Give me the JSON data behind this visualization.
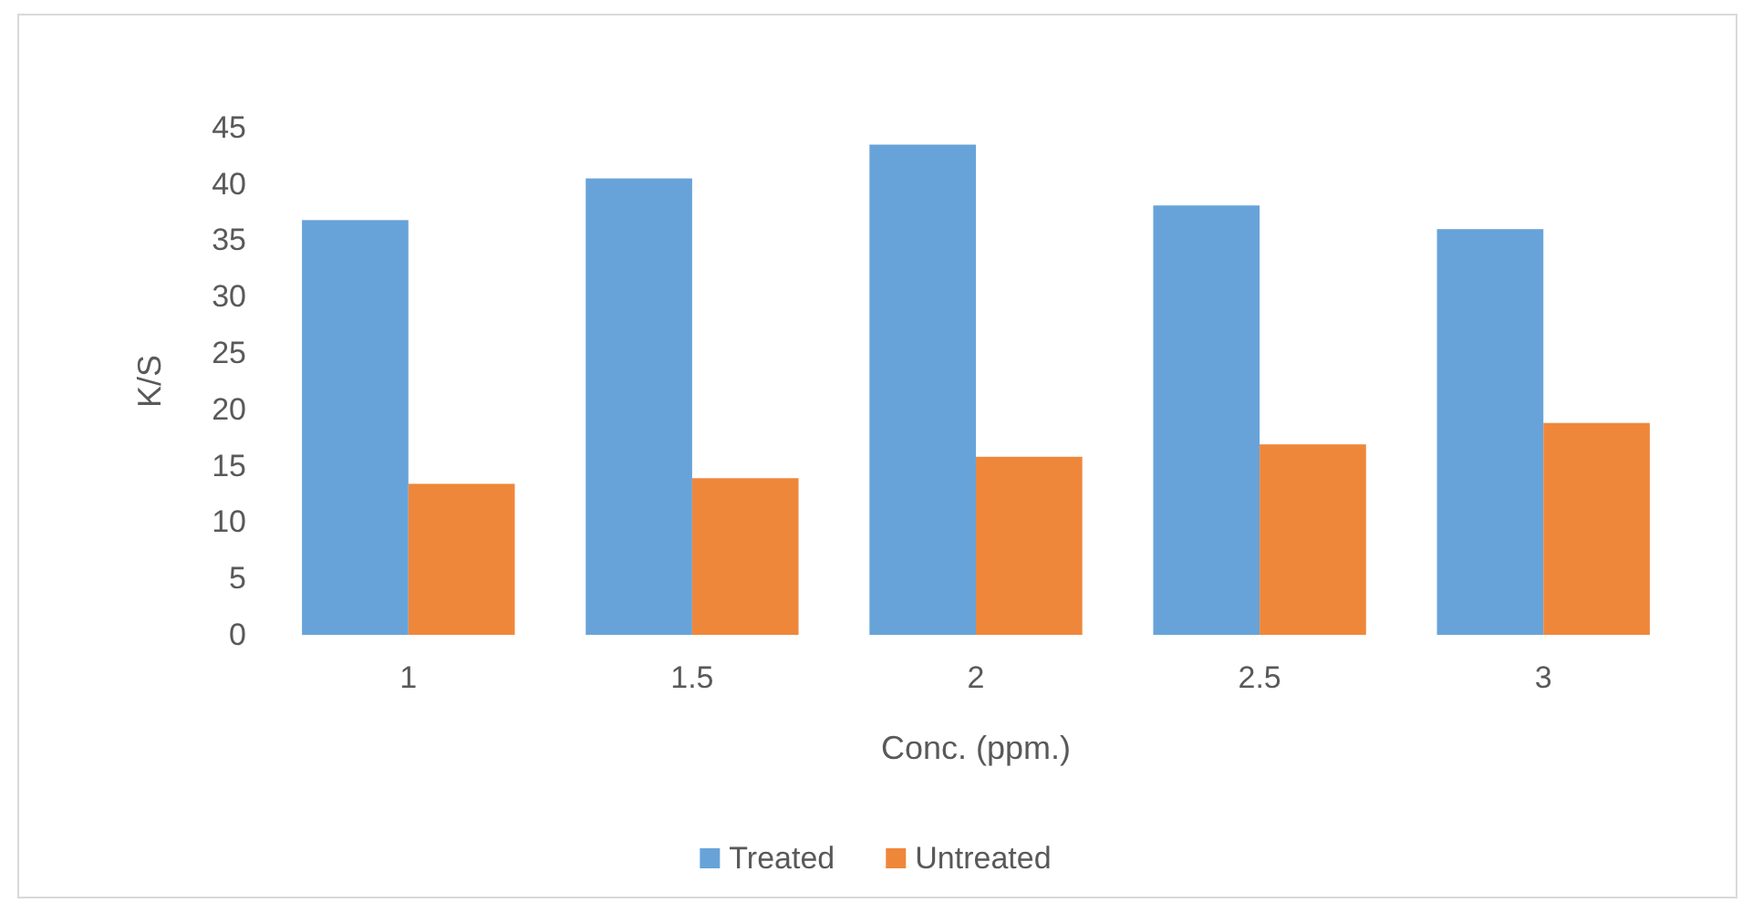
{
  "chart_data": {
    "type": "bar",
    "xlabel": "Conc. (ppm.)",
    "ylabel": "K/S",
    "categories": [
      "1",
      "1.5",
      "2",
      "2.5",
      "3"
    ],
    "series": [
      {
        "name": "Treated",
        "color": "#67a3d9",
        "values": [
          36.8,
          40.5,
          43.5,
          38.1,
          36
        ]
      },
      {
        "name": "Untreated",
        "color": "#ef873b",
        "values": [
          13.4,
          13.9,
          15.8,
          16.9,
          18.8
        ]
      }
    ],
    "ylim": [
      0,
      45
    ],
    "yticks": [
      0,
      5,
      10,
      15,
      20,
      25,
      30,
      35,
      40,
      45
    ],
    "grid": false,
    "legend": "bottom"
  }
}
